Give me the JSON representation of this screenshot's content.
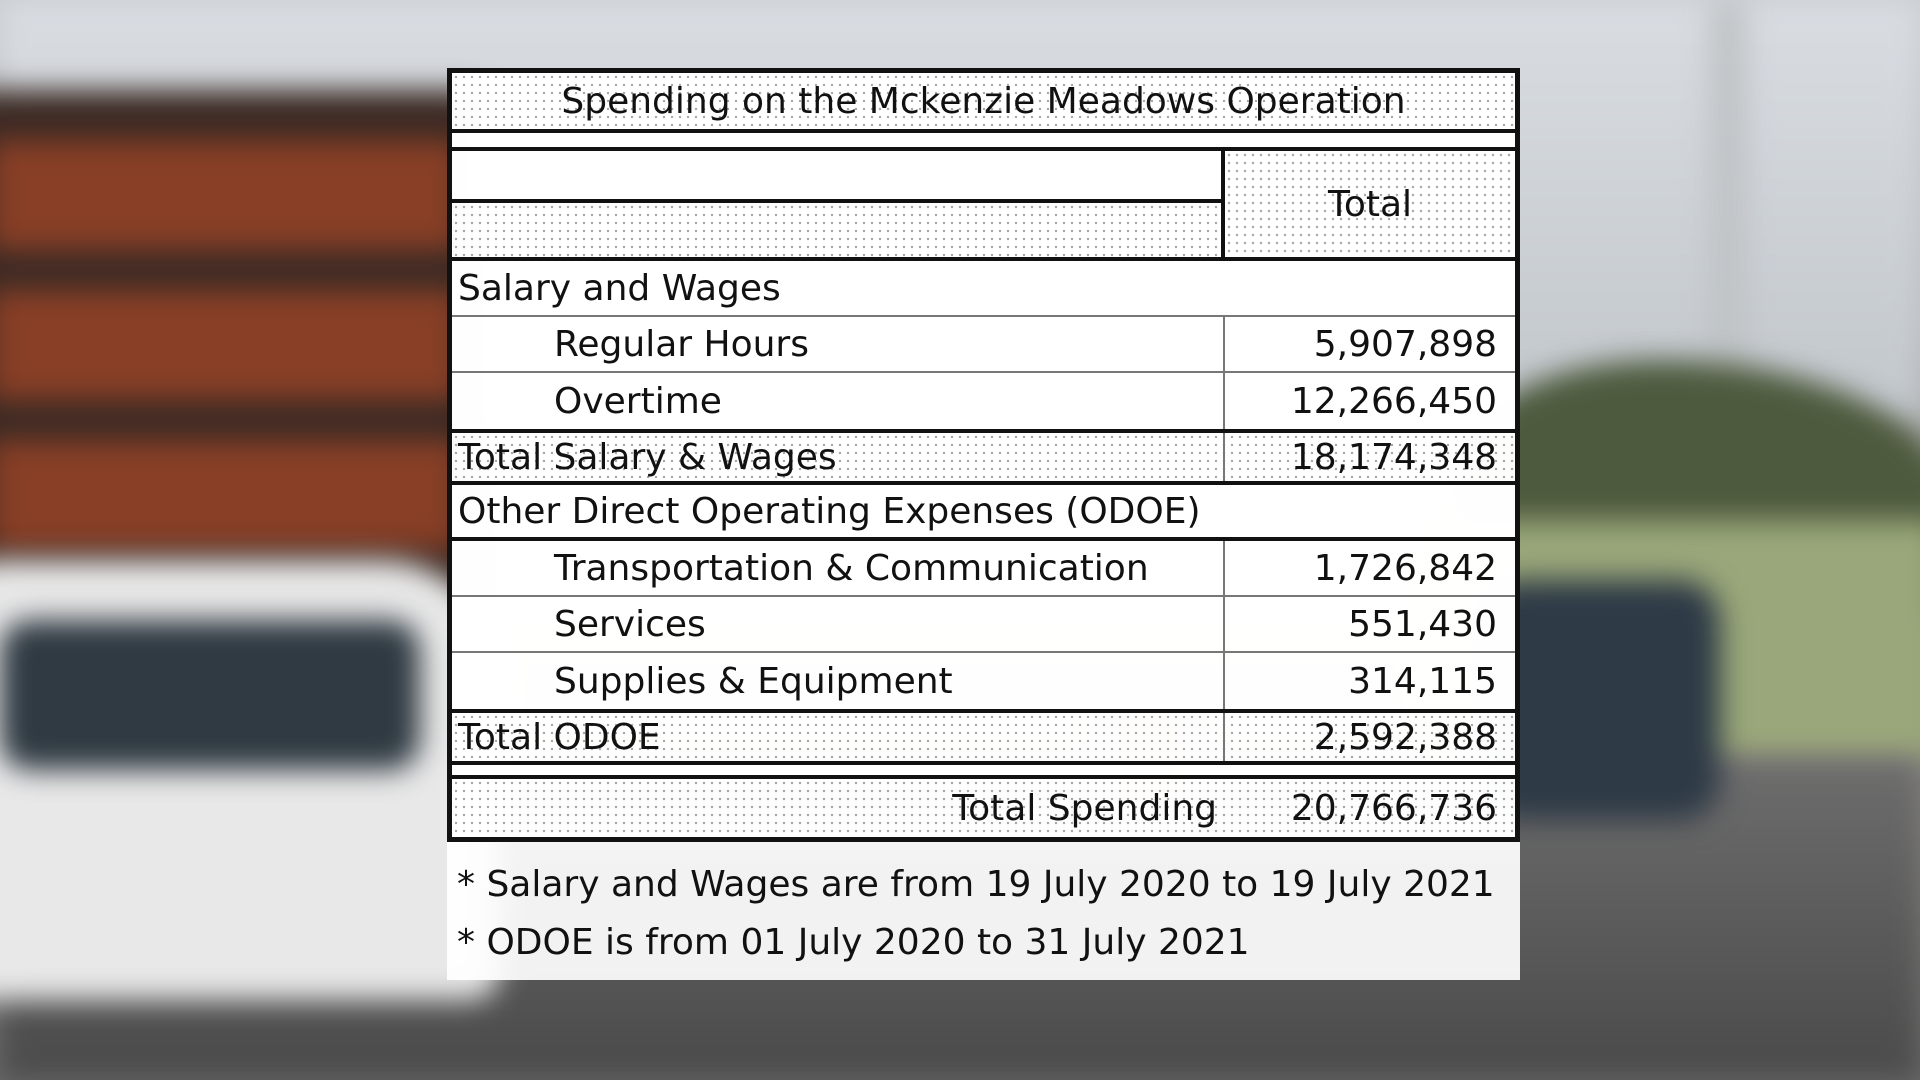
{
  "table": {
    "title": "Spending on the Mckenzie Meadows Operation",
    "column_header": "Total",
    "sections": [
      {
        "heading": "Salary and Wages",
        "items": [
          {
            "label": "Regular Hours",
            "value": "5,907,898"
          },
          {
            "label": "Overtime",
            "value": "12,266,450"
          }
        ],
        "total_label": "Total Salary & Wages",
        "total_value": "18,174,348"
      },
      {
        "heading": "Other Direct Operating Expenses (ODOE)",
        "items": [
          {
            "label": "Transportation & Communication",
            "value": "1,726,842"
          },
          {
            "label": "Services",
            "value": "551,430"
          },
          {
            "label": "Supplies & Equipment",
            "value": "314,115"
          }
        ],
        "total_label": "Total ODOE",
        "total_value": "2,592,388"
      }
    ],
    "grand_total_label": "Total Spending",
    "grand_total_value": "20,766,736"
  },
  "notes": [
    "* Salary and Wages are from 19 July 2020 to 19 July 2021",
    "* ODOE is from 01 July 2020 to 31 July 2021"
  ]
}
